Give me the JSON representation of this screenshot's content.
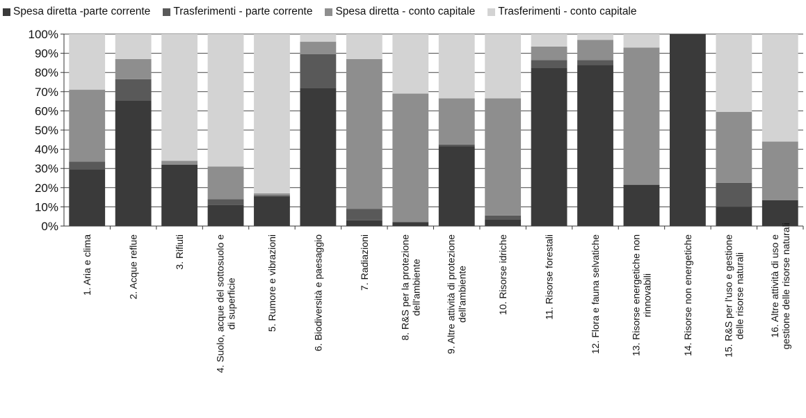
{
  "chart_data": {
    "type": "bar",
    "stacked": true,
    "percent": true,
    "categories": [
      [
        "1. Aria e clima"
      ],
      [
        "2. Acque reflue"
      ],
      [
        "3. Rifiuti"
      ],
      [
        "4. Suolo, acque del sottosuolo e",
        "di superficie"
      ],
      [
        "5. Rumore e vibrazioni"
      ],
      [
        "6. Biodiversità e paesaggio"
      ],
      [
        "7. Radiazioni"
      ],
      [
        "8. R&S per la protezione",
        "dell'ambiente"
      ],
      [
        "9. Altre attività di protezione",
        "dell'ambiente"
      ],
      [
        "10. Risorse idriche"
      ],
      [
        "11. Risorse forestali"
      ],
      [
        "12. Flora e fauna selvatiche"
      ],
      [
        "13. Risorse energetiche non",
        "rinnovabili"
      ],
      [
        "14. Risorse non energetiche"
      ],
      [
        "15. R&S per l'uso e gestione",
        "delle risorse naturali"
      ],
      [
        "16. Altre attività di uso e",
        "gestione delle risorse naturali"
      ]
    ],
    "series": [
      {
        "name": "Spesa diretta -parte corrente",
        "color": "#3a3a3a",
        "values": [
          29.5,
          65.5,
          32,
          11,
          15.5,
          72,
          3,
          2,
          41.5,
          3.5,
          82.5,
          84,
          21.5,
          100,
          10,
          13.5
        ]
      },
      {
        "name": "Trasferimenti - parte corrente",
        "color": "#595959",
        "values": [
          4,
          11,
          0,
          3,
          0.5,
          17.5,
          6,
          0,
          1,
          2,
          4,
          2.5,
          0,
          0,
          12.5,
          0
        ]
      },
      {
        "name": "Spesa diretta - conto capitale",
        "color": "#8e8e8e",
        "values": [
          37.5,
          10.5,
          2,
          17,
          1,
          6.5,
          78,
          67,
          24,
          61,
          7,
          10.5,
          71.5,
          0,
          37,
          30.5
        ]
      },
      {
        "name": "Trasferimenti - conto capitale",
        "color": "#d3d3d3",
        "values": [
          29,
          13,
          66,
          69,
          83,
          4,
          13,
          31,
          33.5,
          33.5,
          6.5,
          3,
          7,
          0,
          40.5,
          56
        ]
      }
    ],
    "yticks": [
      "0%",
      "10%",
      "20%",
      "30%",
      "40%",
      "50%",
      "60%",
      "70%",
      "80%",
      "90%",
      "100%"
    ],
    "ylim": [
      0,
      100
    ],
    "grid": true,
    "legend_position": "top"
  }
}
